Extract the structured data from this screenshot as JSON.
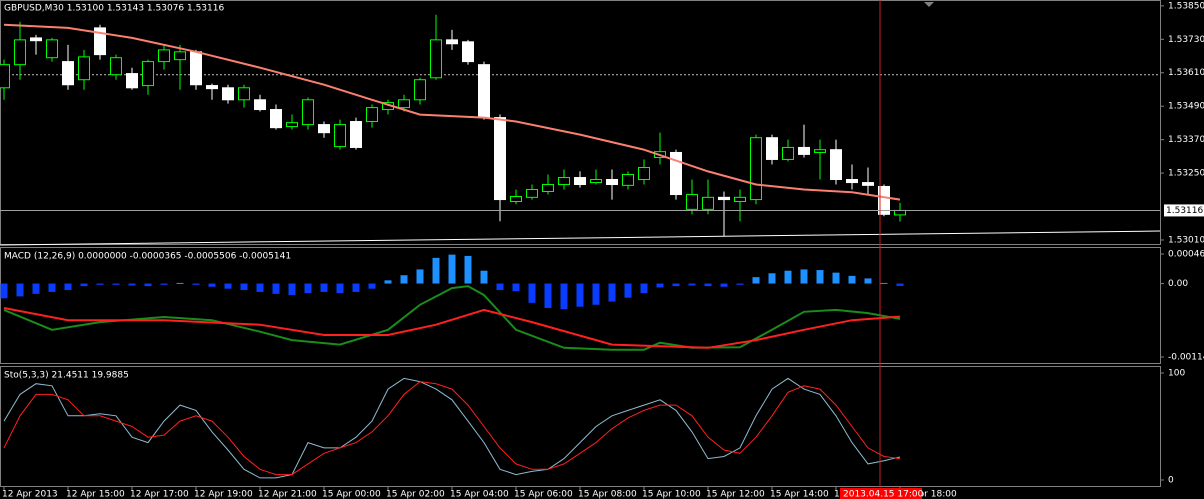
{
  "chart_data": [
    {
      "type": "candlestick",
      "title": "GBPUSD,M30  1.53100 1.53143 1.53076 1.53116",
      "ohlc": [
        [
          1.53556,
          1.53657,
          1.53513,
          1.53639
        ],
        [
          1.53639,
          1.53793,
          1.53585,
          1.53728
        ],
        [
          1.53735,
          1.53746,
          1.53675,
          1.53725
        ],
        [
          1.53664,
          1.53735,
          1.5365,
          1.53728
        ],
        [
          1.5365,
          1.5371,
          1.53549,
          1.53567
        ],
        [
          1.53585,
          1.53692,
          1.53549,
          1.53667
        ],
        [
          1.53771,
          1.53782,
          1.53657,
          1.53675
        ],
        [
          1.53603,
          1.53675,
          1.53585,
          1.53664
        ],
        [
          1.53607,
          1.53628,
          1.53549,
          1.53556
        ],
        [
          1.53564,
          1.53657,
          1.53531,
          1.5365
        ],
        [
          1.5365,
          1.5371,
          1.53621,
          1.53692
        ],
        [
          1.53657,
          1.5371,
          1.53549,
          1.53685
        ],
        [
          1.53685,
          1.53692,
          1.53549,
          1.53567
        ],
        [
          1.53564,
          1.53571,
          1.53513,
          1.53553
        ],
        [
          1.53556,
          1.53567,
          1.53499,
          1.53513
        ],
        [
          1.53513,
          1.53567,
          1.53485,
          1.53556
        ],
        [
          1.53513,
          1.53531,
          1.53471,
          1.53478
        ],
        [
          1.53478,
          1.53496,
          1.53406,
          1.53413
        ],
        [
          1.53417,
          1.5346,
          1.53406,
          1.53431
        ],
        [
          1.53424,
          1.53521,
          1.53406,
          1.53513
        ],
        [
          1.53424,
          1.53435,
          1.53377,
          1.53395
        ],
        [
          1.53345,
          1.53442,
          1.53334,
          1.53424
        ],
        [
          1.53435,
          1.53449,
          1.53334,
          1.53342
        ],
        [
          1.53435,
          1.53496,
          1.53413,
          1.53485
        ],
        [
          1.53478,
          1.53513,
          1.5346,
          1.53503
        ],
        [
          1.53485,
          1.53531,
          1.53471,
          1.53513
        ],
        [
          1.53513,
          1.53592,
          1.53496,
          1.53585
        ],
        [
          1.53592,
          1.53818,
          1.53585,
          1.53728
        ],
        [
          1.53728,
          1.53764,
          1.53692,
          1.53714
        ],
        [
          1.53721,
          1.53728,
          1.53639,
          1.5365
        ],
        [
          1.53639,
          1.5365,
          1.53442,
          1.53449
        ],
        [
          1.53449,
          1.5346,
          1.53077,
          1.53155
        ],
        [
          1.53148,
          1.53191,
          1.53138,
          1.53166
        ],
        [
          1.53163,
          1.53209,
          1.53155,
          1.53191
        ],
        [
          1.53184,
          1.53245,
          1.53173,
          1.53209
        ],
        [
          1.53209,
          1.53263,
          1.53191,
          1.53234
        ],
        [
          1.53234,
          1.53256,
          1.53198,
          1.53209
        ],
        [
          1.53216,
          1.53263,
          1.53209,
          1.53227
        ],
        [
          1.53227,
          1.53263,
          1.53155,
          1.53209
        ],
        [
          1.53206,
          1.53256,
          1.53191,
          1.53245
        ],
        [
          1.53227,
          1.53299,
          1.53209,
          1.5327
        ],
        [
          1.53306,
          1.53395,
          1.53281,
          1.53327
        ],
        [
          1.53324,
          1.53334,
          1.53155,
          1.53173
        ],
        [
          1.5312,
          1.53227,
          1.53102,
          1.53173
        ],
        [
          1.5312,
          1.53227,
          1.53102,
          1.53163
        ],
        [
          1.53163,
          1.53184,
          1.53023,
          1.53155
        ],
        [
          1.53148,
          1.53191,
          1.53077,
          1.53163
        ],
        [
          1.53155,
          1.53388,
          1.53138,
          1.53377
        ],
        [
          1.53377,
          1.53388,
          1.53281,
          1.53299
        ],
        [
          1.53299,
          1.5337,
          1.53292,
          1.53342
        ],
        [
          1.53342,
          1.53424,
          1.53306,
          1.53317
        ],
        [
          1.53324,
          1.5337,
          1.53227,
          1.53334
        ],
        [
          1.53334,
          1.5337,
          1.53209,
          1.53227
        ],
        [
          1.53227,
          1.53281,
          1.53191,
          1.53216
        ],
        [
          1.53216,
          1.5327,
          1.53173,
          1.53206
        ],
        [
          1.53202,
          1.53209,
          1.53095,
          1.53102
        ],
        [
          1.531,
          1.53143,
          1.53076,
          1.53116
        ]
      ],
      "up_color": "#000000",
      "up_edge": "#00ff00",
      "down_color": "#ffffff",
      "ma": {
        "color": "#fa8072",
        "x": [
          0,
          4,
          8,
          12,
          16,
          20,
          23,
          26,
          30,
          32,
          36,
          40,
          44,
          47,
          50,
          53,
          56
        ],
        "values": [
          1.53782,
          1.53771,
          1.53735,
          1.53685,
          1.53628,
          1.53567,
          1.53513,
          1.5346,
          1.53449,
          1.53435,
          1.53388,
          1.53334,
          1.53256,
          1.53209,
          1.53191,
          1.53181,
          1.53155
        ]
      },
      "hlines": [
        1.53603
      ],
      "ylim": [
        1.52992,
        1.53871
      ],
      "yticks": [
        {
          "value": 1.5385,
          "label": "1.53850"
        },
        {
          "value": 1.5373,
          "label": "1.53730"
        },
        {
          "value": 1.5361,
          "label": "1.53610"
        },
        {
          "value": 1.5349,
          "label": "1.53490"
        },
        {
          "value": 1.5337,
          "label": "1.53370"
        },
        {
          "value": 1.5325,
          "label": "1.53250"
        },
        {
          "value": 1.5301,
          "label": "1.53010"
        }
      ]
    },
    {
      "type": "macd",
      "title": "MACD (12,26,9) 0.0000000 -0.0000365 -0.0005506 -0.0005141",
      "values": [
        -0.00023,
        -0.0002,
        -0.00016,
        -0.00013,
        -0.0001,
        -4e-05,
        -2e-05,
        -2e-05,
        -3e-05,
        -4e-05,
        -2e-05,
        1e-05,
        -2e-05,
        -5e-05,
        -8e-05,
        -0.0001,
        -0.00013,
        -0.00016,
        -0.00018,
        -0.00015,
        -0.00013,
        -0.00015,
        -0.00013,
        -8e-05,
        5e-05,
        0.00013,
        0.00022,
        0.0004,
        0.00045,
        0.00043,
        0.0002,
        -0.0001,
        -0.00012,
        -0.0003,
        -0.00038,
        -0.0004,
        -0.00036,
        -0.00033,
        -0.00028,
        -0.00022,
        -0.00015,
        -6e-05,
        -4e-05,
        -3e-05,
        -4e-05,
        -5e-05,
        -2e-05,
        0.0001,
        0.00016,
        0.0002,
        0.00022,
        0.00021,
        0.00017,
        0.00012,
        8e-05,
        1e-05,
        -3.65e-05
      ],
      "up_color": "#1e90ff",
      "down_color": "#0a3cff",
      "lines": [
        {
          "color": "#1a8c1a",
          "x": [
            0,
            3,
            6,
            10,
            13,
            16,
            18,
            21,
            24,
            26,
            28,
            29,
            30,
            32,
            35,
            38,
            40,
            41,
            43,
            46,
            48,
            50,
            52,
            54,
            56
          ],
          "values": [
            -0.00041,
            -0.00072,
            -0.0006,
            -0.00052,
            -0.00057,
            -0.00075,
            -0.00088,
            -0.00095,
            -0.00072,
            -0.00033,
            -7e-05,
            -4e-05,
            -0.00018,
            -0.00072,
            -0.001,
            -0.00103,
            -0.00103,
            -0.00092,
            -0.001,
            -0.00099,
            -0.00072,
            -0.00044,
            -0.00041,
            -0.00046,
            -0.0005506
          ]
        },
        {
          "color": "#ff2020",
          "x": [
            0,
            4,
            10,
            16,
            20,
            24,
            27,
            30,
            33,
            38,
            44,
            47,
            50,
            53,
            56
          ],
          "values": [
            -0.00038,
            -0.00057,
            -0.00057,
            -0.00064,
            -0.0008,
            -0.0008,
            -0.00064,
            -0.00041,
            -0.0006,
            -0.00095,
            -0.001,
            -0.00088,
            -0.00072,
            -0.00057,
            -0.0005141
          ]
        }
      ],
      "ylim": [
        -0.001143,
        0.00046
      ],
      "yticks": [
        {
          "value": 0.00046,
          "label": "0.000460"
        },
        {
          "value": 0,
          "label": "0.00"
        },
        {
          "value": -0.001143,
          "label": "-0.001143"
        }
      ]
    },
    {
      "type": "line",
      "title": "Sto(5,3,3) 21.4511 19.9885",
      "series": [
        {
          "color": "#8fbcd0",
          "values": [
            55,
            80,
            90,
            88,
            60,
            60,
            62,
            60,
            40,
            35,
            55,
            70,
            65,
            45,
            28,
            10,
            2,
            2,
            5,
            35,
            30,
            30,
            40,
            55,
            85,
            95,
            92,
            85,
            75,
            55,
            35,
            10,
            5,
            8,
            10,
            20,
            35,
            50,
            60,
            65,
            70,
            75,
            65,
            45,
            20,
            22,
            30,
            60,
            85,
            95,
            85,
            80,
            60,
            35,
            15,
            18,
            21.4511
          ]
        },
        {
          "color": "#ff2020",
          "values": [
            30,
            60,
            80,
            80,
            75,
            60,
            60,
            55,
            50,
            40,
            42,
            55,
            60,
            55,
            40,
            22,
            10,
            5,
            5,
            15,
            25,
            30,
            35,
            45,
            60,
            80,
            92,
            90,
            85,
            70,
            50,
            30,
            15,
            10,
            10,
            15,
            25,
            35,
            48,
            58,
            65,
            70,
            70,
            60,
            40,
            28,
            25,
            40,
            60,
            82,
            88,
            85,
            70,
            50,
            30,
            22,
            19.9885
          ]
        }
      ],
      "ylim": [
        0,
        100
      ],
      "yticks": [
        0,
        100
      ],
      "xticks": [
        {
          "value": 0,
          "label": "12 Apr 2013"
        },
        {
          "value": 4,
          "label": "12 Apr 15:00"
        },
        {
          "value": 8,
          "label": "12 Apr 17:00"
        },
        {
          "value": 12,
          "label": "12 Apr 19:00"
        },
        {
          "value": 16,
          "label": "12 Apr 21:00"
        },
        {
          "value": 20,
          "label": "15 Apr 00:00"
        },
        {
          "value": 24,
          "label": "15 Apr 02:00"
        },
        {
          "value": 28,
          "label": "15 Apr 04:00"
        },
        {
          "value": 32,
          "label": "15 Apr 06:00"
        },
        {
          "value": 36,
          "label": "15 Apr 08:00"
        },
        {
          "value": 40,
          "label": "15 Apr 10:00"
        },
        {
          "value": 44,
          "label": "15 Apr 12:00"
        },
        {
          "value": 48,
          "label": "15 Apr 14:00"
        },
        {
          "value": 52,
          "label": "15 Apr 16:00"
        },
        {
          "value": 56,
          "label": "15 Apr 18:00"
        }
      ],
      "cursor_label": "2013.04.15 17:00"
    }
  ]
}
